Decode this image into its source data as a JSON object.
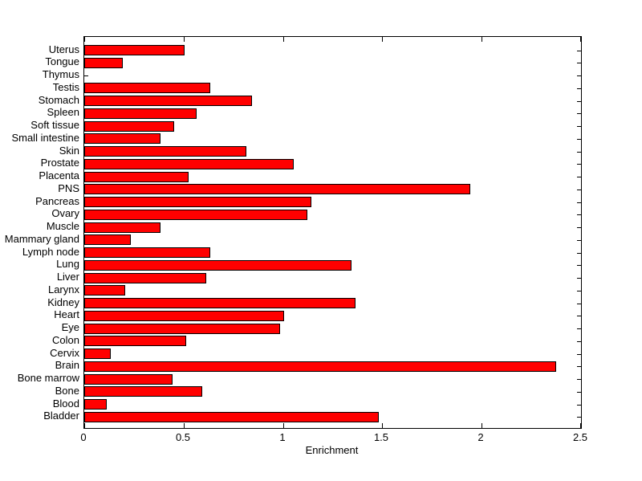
{
  "chart_data": {
    "type": "bar",
    "orientation": "horizontal",
    "title": "",
    "xlabel": "Enrichment",
    "ylabel": "",
    "categories": [
      "Uterus",
      "Tongue",
      "Thymus",
      "Testis",
      "Stomach",
      "Spleen",
      "Soft tissue",
      "Small intestine",
      "Skin",
      "Prostate",
      "Placenta",
      "PNS",
      "Pancreas",
      "Ovary",
      "Muscle",
      "Mammary gland",
      "Lymph node",
      "Lung",
      "Liver",
      "Larynx",
      "Kidney",
      "Heart",
      "Eye",
      "Colon",
      "Cervix",
      "Brain",
      "Bone marrow",
      "Bone",
      "Blood",
      "Bladder"
    ],
    "values": [
      0.5,
      0.19,
      0.0,
      0.63,
      0.84,
      0.56,
      0.45,
      0.38,
      0.81,
      1.05,
      0.52,
      1.94,
      1.14,
      1.12,
      0.38,
      0.23,
      0.63,
      1.34,
      0.61,
      0.2,
      1.36,
      1.0,
      0.98,
      0.51,
      0.13,
      2.37,
      0.44,
      0.59,
      0.11,
      1.48
    ],
    "xlim": [
      0,
      2.5
    ],
    "xticks": [
      0,
      0.5,
      1,
      1.5,
      2,
      2.5
    ],
    "xtick_labels": [
      "0",
      "0.5",
      "1",
      "1.5",
      "2",
      "2.5"
    ],
    "grid": false,
    "legend": null,
    "bar_color": "#ff0000",
    "bar_edge_color": "#000000",
    "axis_color": "#000000",
    "background_color": "#ffffff",
    "tick_direction": "in",
    "box": true
  }
}
